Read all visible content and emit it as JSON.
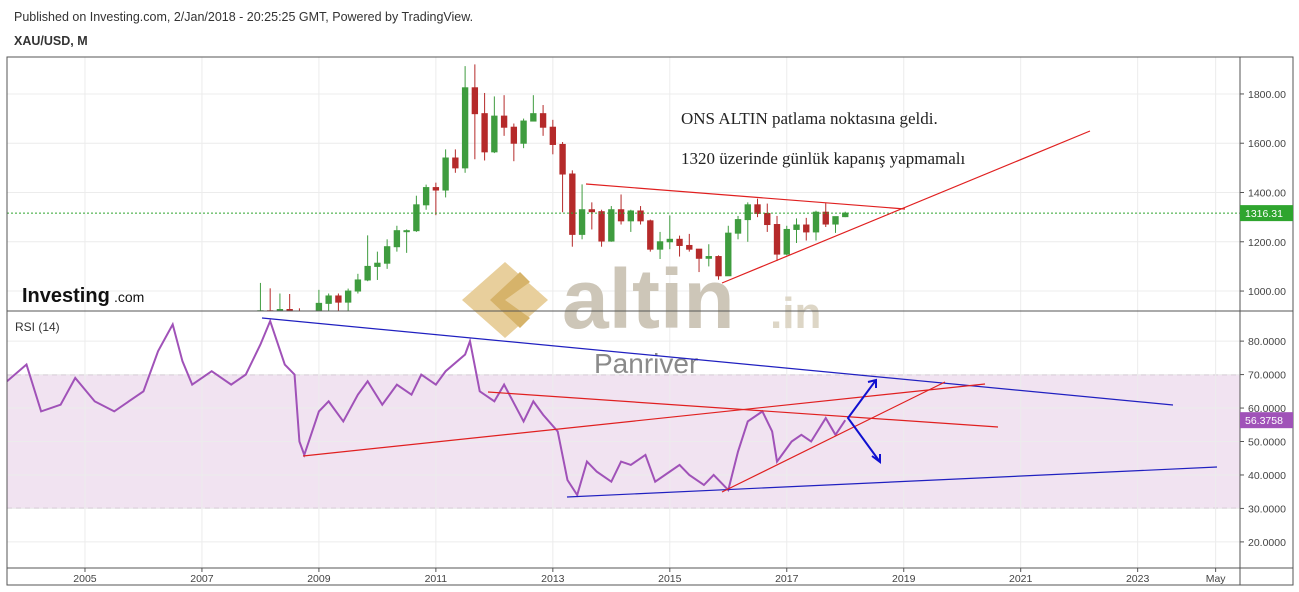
{
  "header": {
    "published": "Published on Investing.com, 2/Jan/2018 - 20:25:25 GMT, Powered by TradingView.",
    "symbol": "XAU/USD, M"
  },
  "watermarks": {
    "investing": "Investing",
    "investing_suffix": ".com",
    "altin": "altin",
    "altin_suffix": ".in",
    "panriver": "Panriver"
  },
  "chart_data": [
    {
      "type": "candlestick",
      "x": [
        "2008-01",
        "2008-03",
        "2008-05",
        "2008-07",
        "2008-09",
        "2008-11",
        "2009-01",
        "2009-03",
        "2009-05",
        "2009-07",
        "2009-09",
        "2009-11",
        "2010-01",
        "2010-03",
        "2010-05",
        "2010-07",
        "2010-09",
        "2010-11",
        "2011-01",
        "2011-03",
        "2011-05",
        "2011-07",
        "2011-09",
        "2011-11",
        "2012-01",
        "2012-03",
        "2012-05",
        "2012-07",
        "2012-09",
        "2012-11",
        "2013-01",
        "2013-03",
        "2013-05",
        "2013-07",
        "2013-09",
        "2013-11",
        "2014-01",
        "2014-03",
        "2014-05",
        "2014-07",
        "2014-09",
        "2014-11",
        "2015-01",
        "2015-03",
        "2015-05",
        "2015-07",
        "2015-09",
        "2015-11",
        "2016-01",
        "2016-03",
        "2016-05",
        "2016-07",
        "2016-09",
        "2016-11",
        "2017-01",
        "2017-03",
        "2017-05",
        "2017-07",
        "2017-09",
        "2017-11",
        "2018-01"
      ],
      "open": [
        834,
        920,
        870,
        925,
        830,
        720,
        870,
        950,
        980,
        955,
        1000,
        1045,
        1100,
        1113,
        1180,
        1245,
        1245,
        1350,
        1420,
        1410,
        1540,
        1500,
        1825,
        1720,
        1565,
        1710,
        1665,
        1600,
        1690,
        1720,
        1665,
        1595,
        1475,
        1230,
        1330,
        1322,
        1203,
        1330,
        1285,
        1325,
        1285,
        1170,
        1200,
        1210,
        1185,
        1170,
        1133,
        1140,
        1062,
        1235,
        1290,
        1350,
        1315,
        1270,
        1150,
        1250,
        1268,
        1240,
        1320,
        1272,
        1302
      ],
      "high": [
        1033,
        1011,
        990,
        988,
        930,
        890,
        1005,
        990,
        990,
        1010,
        1070,
        1226,
        1160,
        1210,
        1265,
        1250,
        1387,
        1432,
        1440,
        1575,
        1575,
        1913,
        1920,
        1804,
        1790,
        1795,
        1680,
        1700,
        1795,
        1755,
        1695,
        1605,
        1490,
        1433,
        1360,
        1330,
        1345,
        1392,
        1330,
        1345,
        1290,
        1240,
        1307,
        1225,
        1232,
        1170,
        1190,
        1145,
        1265,
        1305,
        1360,
        1375,
        1355,
        1305,
        1265,
        1295,
        1297,
        1326,
        1357,
        1300,
        1322
      ],
      "low": [
        780,
        850,
        850,
        760,
        680,
        700,
        850,
        865,
        900,
        910,
        990,
        1040,
        1045,
        1090,
        1160,
        1155,
        1240,
        1330,
        1308,
        1380,
        1480,
        1480,
        1535,
        1530,
        1560,
        1630,
        1527,
        1580,
        1690,
        1630,
        1555,
        1320,
        1180,
        1210,
        1250,
        1180,
        1200,
        1270,
        1240,
        1270,
        1160,
        1130,
        1170,
        1140,
        1160,
        1077,
        1100,
        1046,
        1062,
        1210,
        1200,
        1300,
        1240,
        1122,
        1145,
        1195,
        1205,
        1205,
        1260,
        1236,
        1300
      ],
      "close": [
        920,
        870,
        925,
        830,
        720,
        870,
        950,
        980,
        955,
        1000,
        1045,
        1100,
        1113,
        1180,
        1245,
        1245,
        1350,
        1420,
        1410,
        1540,
        1500,
        1825,
        1720,
        1565,
        1710,
        1665,
        1600,
        1690,
        1720,
        1665,
        1595,
        1475,
        1230,
        1330,
        1322,
        1203,
        1330,
        1285,
        1325,
        1285,
        1170,
        1200,
        1210,
        1185,
        1170,
        1133,
        1140,
        1062,
        1235,
        1290,
        1350,
        1315,
        1270,
        1150,
        1250,
        1268,
        1240,
        1320,
        1272,
        1302,
        1316.31
      ],
      "up_color": "#3f9c3f",
      "down_color": "#b52a2a",
      "last_color": "#2fa52f",
      "xlim": [
        "2003-09",
        "2024-10"
      ],
      "ylim": [
        919,
        1950
      ],
      "yticks": [
        {
          "value": 1000,
          "label": "1000.00"
        },
        {
          "value": 1200,
          "label": "1200.00"
        },
        {
          "value": 1400,
          "label": "1400.00"
        },
        {
          "value": 1600,
          "label": "1600.00"
        },
        {
          "value": 1800,
          "label": "1800.00"
        }
      ],
      "grid": true,
      "annotations": [
        "ONS ALTIN patlama noktasına geldi.",
        "1320 üzerinde günlük kapanış yapmamalı"
      ]
    },
    {
      "type": "line",
      "title": "RSI (14)",
      "x": [
        "2003-09",
        "2004-01",
        "2004-04",
        "2004-08",
        "2004-11",
        "2005-03",
        "2005-07",
        "2005-10",
        "2006-01",
        "2006-04",
        "2006-07",
        "2006-09",
        "2006-11",
        "2007-03",
        "2007-07",
        "2007-10",
        "2008-01",
        "2008-03",
        "2008-06",
        "2008-08",
        "2008-09",
        "2008-10",
        "2009-01",
        "2009-03",
        "2009-06",
        "2009-09",
        "2009-11",
        "2010-02",
        "2010-05",
        "2010-08",
        "2010-10",
        "2011-01",
        "2011-03",
        "2011-07",
        "2011-08",
        "2011-10",
        "2012-01",
        "2012-03",
        "2012-07",
        "2012-09",
        "2012-11",
        "2013-02",
        "2013-04",
        "2013-06",
        "2013-08",
        "2013-10",
        "2014-01",
        "2014-03",
        "2014-05",
        "2014-08",
        "2014-10",
        "2015-01",
        "2015-03",
        "2015-05",
        "2015-08",
        "2015-10",
        "2016-01",
        "2016-03",
        "2016-05",
        "2016-08",
        "2016-10",
        "2016-11",
        "2017-02",
        "2017-04",
        "2017-06",
        "2017-09",
        "2017-11",
        "2018-01"
      ],
      "values": [
        68,
        73,
        59,
        61,
        69,
        62,
        59,
        62,
        65,
        77,
        85,
        74,
        67,
        71,
        67,
        70,
        79,
        86,
        73,
        70,
        50,
        46,
        59,
        62,
        56,
        64,
        68,
        61,
        67,
        64,
        70,
        67,
        71,
        76,
        80,
        65,
        62,
        67,
        56,
        62,
        58,
        53,
        38.5,
        34,
        44,
        41,
        38,
        44,
        43,
        46,
        38,
        41,
        43,
        40,
        37,
        40,
        35.5,
        47,
        56,
        59,
        53,
        44,
        50,
        52,
        50,
        57,
        52,
        56.3758
      ],
      "color": "#a052b8",
      "band": [
        30,
        70
      ],
      "band_color": "#f1e3f1",
      "xlim": [
        "2003-09",
        "2024-10"
      ],
      "ylim": [
        12.2,
        89
      ],
      "yticks": [
        {
          "value": 20,
          "label": "20.0000"
        },
        {
          "value": 30,
          "label": "30.0000"
        },
        {
          "value": 40,
          "label": "40.0000"
        },
        {
          "value": 50,
          "label": "50.0000"
        },
        {
          "value": 60,
          "label": "60.0000"
        },
        {
          "value": 70,
          "label": "70.0000"
        },
        {
          "value": 80,
          "label": "80.0000"
        }
      ],
      "xticks": [
        {
          "value": "2005-01",
          "label": "2005"
        },
        {
          "value": "2007-01",
          "label": "2007"
        },
        {
          "value": "2009-01",
          "label": "2009"
        },
        {
          "value": "2011-01",
          "label": "2011"
        },
        {
          "value": "2013-01",
          "label": "2013"
        },
        {
          "value": "2015-01",
          "label": "2015"
        },
        {
          "value": "2017-01",
          "label": "2017"
        },
        {
          "value": "2019-01",
          "label": "2019"
        },
        {
          "value": "2021-01",
          "label": "2021"
        },
        {
          "value": "2023-01",
          "label": "2023"
        },
        {
          "value": "2024-05",
          "label": "May"
        }
      ],
      "grid": true
    }
  ]
}
